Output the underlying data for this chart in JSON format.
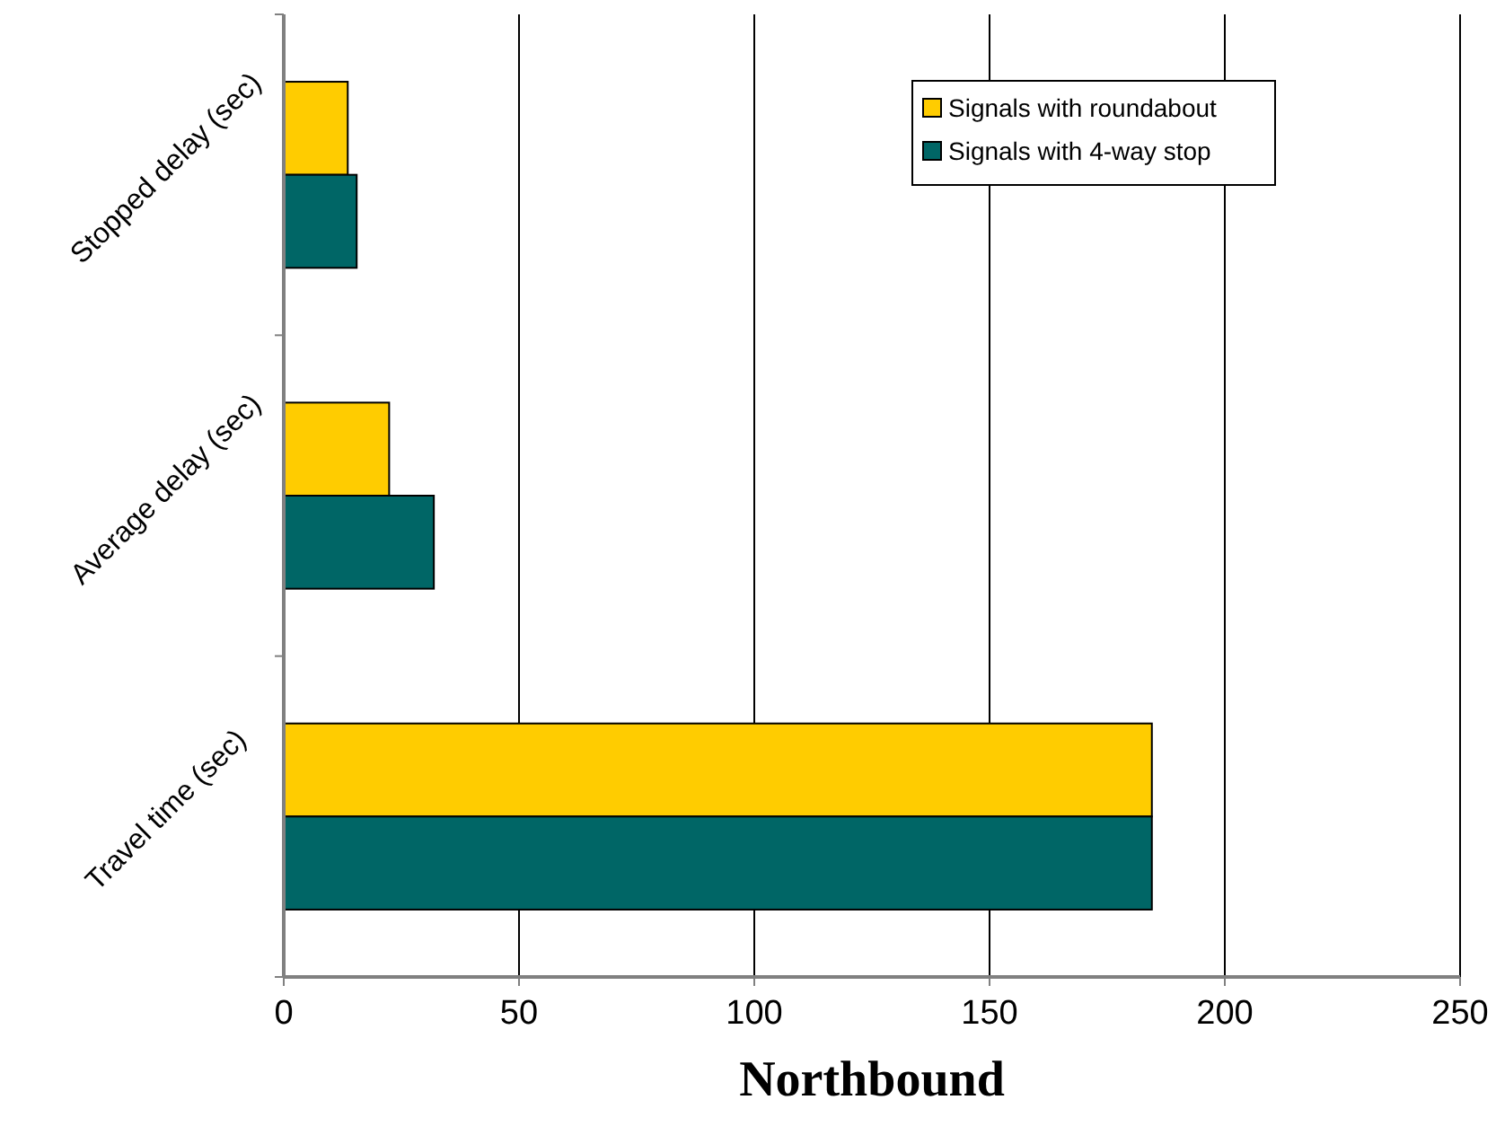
{
  "chart_data": {
    "type": "bar",
    "orientation": "horizontal",
    "xlabel": "Northbound",
    "categories": [
      "Stopped delay (sec)",
      "Average delay (sec)",
      "Travel time (sec)"
    ],
    "series": [
      {
        "name": "Signals with roundabout",
        "color": "#ffcc00",
        "values": [
          13.6,
          22.4,
          184.5
        ]
      },
      {
        "name": "Signals with 4-way stop",
        "color": "#006666",
        "values": [
          15.5,
          31.9,
          184.5
        ]
      }
    ],
    "xlim": [
      0,
      250
    ],
    "xticks": [
      0,
      50,
      100,
      150,
      200,
      250
    ],
    "grid": "x",
    "legend": "top right"
  }
}
